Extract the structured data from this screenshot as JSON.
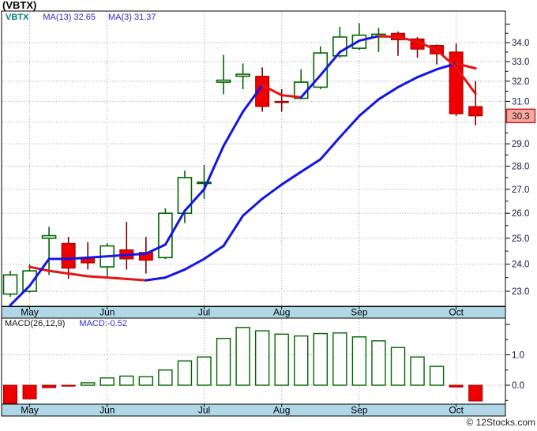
{
  "window": {
    "title": "(VBTX)"
  },
  "price_panel": {
    "legend": {
      "symbol": "VBTX",
      "ma13_label": "MA(13) 32.65",
      "ma3_label": "MA(3) 31.37"
    }
  },
  "macd_panel": {
    "label": "MACD(26,12,9)",
    "value_label": "MACD:-0.52"
  },
  "footer": {
    "credit": "© 12Stocks.com"
  },
  "colors": {
    "up_edge": "#006400",
    "down_fill": "#ee0000",
    "down_edge": "#990000",
    "down_wick": "#7a0000",
    "ma_rising": "#1414e6",
    "ma_falling": "#e61414",
    "band_fill": "#afd7e6",
    "grid": "#999999",
    "axis_text": "#15153a",
    "badge_fill": "#f5a9a0",
    "badge_edge": "#cc2020",
    "legend_symbol": "#007a7a",
    "legend_value": "#2a2ac8"
  },
  "chart_data": [
    {
      "type": "candlestick",
      "title": "(VBTX) weekly candles with MA(13) and MA(3)",
      "months": [
        "May",
        "Jun",
        "Jul",
        "Aug",
        "Sep",
        "Oct"
      ],
      "month_tick_candle_index": [
        1,
        5,
        10,
        14,
        18,
        23
      ],
      "y_axis": {
        "scale": "log",
        "labels": [
          34.0,
          33.0,
          32.0,
          31.0,
          29.0,
          28.0,
          27.0,
          26.0,
          25.0,
          24.0,
          23.0
        ],
        "minor_step": 0.5,
        "last_price": 30.3
      },
      "candles": [
        [
          22.9,
          23.75,
          22.8,
          23.6
        ],
        [
          23.0,
          24.0,
          22.95,
          23.75
        ],
        [
          25.0,
          25.45,
          23.6,
          25.1
        ],
        [
          24.8,
          25.05,
          23.45,
          23.85
        ],
        [
          24.25,
          24.85,
          23.8,
          24.05
        ],
        [
          23.9,
          24.8,
          23.5,
          24.7
        ],
        [
          24.55,
          25.65,
          23.8,
          24.2
        ],
        [
          24.45,
          25.05,
          23.65,
          24.15
        ],
        [
          24.25,
          26.2,
          24.2,
          26.0
        ],
        [
          26.0,
          27.8,
          25.6,
          27.5
        ],
        [
          27.25,
          28.05,
          26.6,
          27.3
        ],
        [
          31.95,
          33.35,
          31.35,
          32.05
        ],
        [
          32.25,
          32.9,
          31.6,
          32.35
        ],
        [
          32.25,
          32.7,
          30.5,
          30.75
        ],
        [
          31.0,
          31.6,
          30.5,
          30.95
        ],
        [
          31.15,
          32.6,
          31.1,
          31.95
        ],
        [
          31.7,
          33.8,
          31.6,
          33.45
        ],
        [
          33.3,
          34.85,
          33.2,
          34.3
        ],
        [
          33.7,
          35.05,
          33.6,
          34.4
        ],
        [
          34.3,
          34.8,
          33.5,
          34.45
        ],
        [
          34.5,
          34.6,
          33.3,
          34.15
        ],
        [
          34.2,
          34.3,
          33.2,
          33.65
        ],
        [
          33.85,
          33.9,
          32.85,
          33.4
        ],
        [
          33.5,
          33.95,
          30.3,
          30.4
        ],
        [
          30.75,
          32.0,
          29.85,
          30.3
        ]
      ],
      "ma3": [
        22.5,
        23.2,
        24.2,
        24.2,
        24.25,
        24.3,
        24.35,
        24.4,
        24.75,
        26.1,
        27.0,
        28.9,
        30.5,
        31.8,
        31.3,
        31.2,
        32.3,
        33.5,
        34.1,
        34.35,
        34.3,
        34.05,
        33.6,
        32.7,
        31.37
      ],
      "ma13": [
        null,
        23.9,
        23.75,
        23.65,
        23.55,
        23.5,
        23.45,
        23.4,
        23.5,
        23.8,
        24.2,
        24.7,
        25.9,
        26.6,
        27.2,
        27.75,
        28.3,
        29.3,
        30.3,
        31.1,
        31.7,
        32.2,
        32.6,
        32.9,
        32.65
      ]
    },
    {
      "type": "bar",
      "title": "MACD(26,12,9)",
      "values": [
        -0.65,
        -0.45,
        -0.08,
        -0.03,
        0.08,
        0.24,
        0.3,
        0.28,
        0.5,
        0.8,
        0.93,
        1.54,
        1.9,
        1.79,
        1.68,
        1.62,
        1.7,
        1.72,
        1.59,
        1.46,
        1.24,
        0.93,
        0.62,
        -0.06,
        -0.52
      ],
      "y_axis": {
        "labels": [
          1.0,
          0.0
        ],
        "minor_step": 0.5,
        "last_value": -0.52
      }
    }
  ]
}
